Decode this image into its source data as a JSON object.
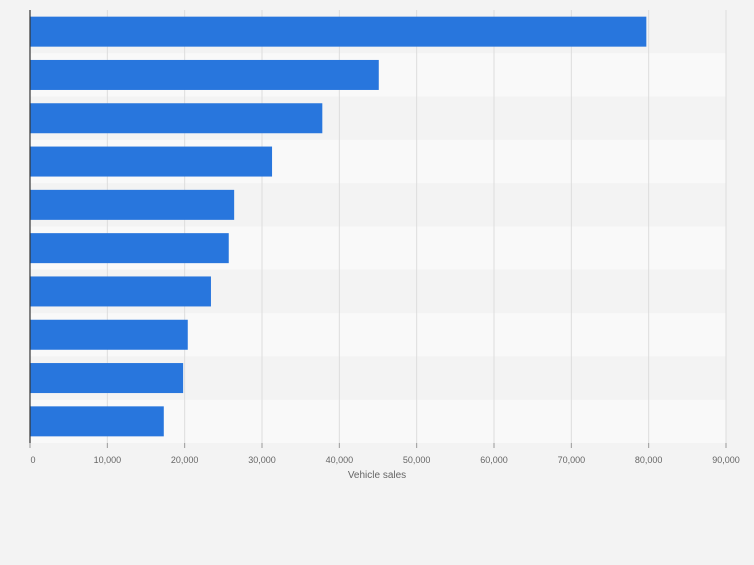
{
  "chart_data": {
    "type": "bar",
    "orientation": "horizontal",
    "categories": [
      "",
      "",
      "",
      "",
      "",
      "",
      "",
      "",
      "",
      ""
    ],
    "values": [
      79700,
      45100,
      37800,
      31300,
      26400,
      25700,
      23400,
      20400,
      19800,
      17300
    ],
    "xlabel": "Vehicle sales",
    "xlim": [
      0,
      90000
    ],
    "xticks": [
      0,
      10000,
      20000,
      30000,
      40000,
      50000,
      60000,
      70000,
      80000,
      90000
    ],
    "xtick_labels": [
      "0",
      "10,000",
      "20,000",
      "30,000",
      "40,000",
      "50,000",
      "60,000",
      "70,000",
      "80,000",
      "90,000"
    ],
    "grid": true,
    "colors": {
      "bar": "#2876dd",
      "band_light": "#f9f9f9",
      "band_dark": "#f3f3f3",
      "grid": "#dddddd",
      "axis": "#333333",
      "tick_text": "#666666"
    }
  }
}
